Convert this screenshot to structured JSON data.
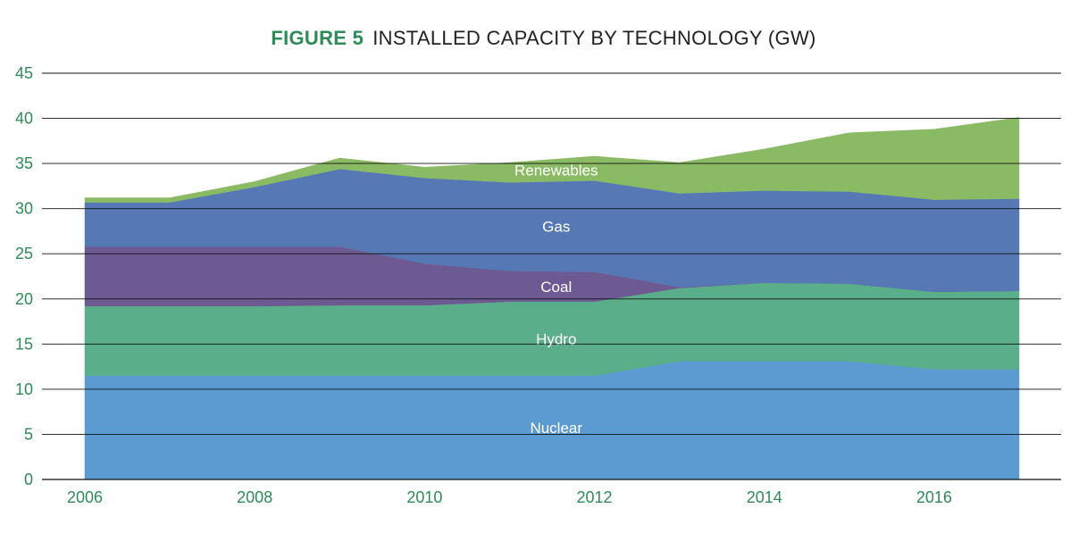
{
  "title": {
    "figure": "FIGURE 5",
    "text": "INSTALLED CAPACITY BY TECHNOLOGY (GW)"
  },
  "chart_data": {
    "type": "area",
    "stacked": true,
    "title": "FIGURE 5 INSTALLED CAPACITY BY TECHNOLOGY (GW)",
    "xlabel": "",
    "ylabel": "",
    "x": [
      2006,
      2007,
      2008,
      2009,
      2010,
      2011,
      2012,
      2013,
      2014,
      2015,
      2016,
      2017
    ],
    "x_tick_labels": [
      "2006",
      "2008",
      "2010",
      "2012",
      "2014",
      "2016"
    ],
    "y_tick_labels": [
      "0",
      "5",
      "10",
      "15",
      "20",
      "25",
      "30",
      "35",
      "40",
      "45"
    ],
    "ylim": [
      0,
      45
    ],
    "grid": true,
    "series": [
      {
        "name": "Nuclear",
        "color": "#5b9bd1",
        "values": [
          11.5,
          11.5,
          11.5,
          11.5,
          11.5,
          11.5,
          11.5,
          13.1,
          13.1,
          13.1,
          12.2,
          12.2
        ]
      },
      {
        "name": "Hydro",
        "color": "#5aaf8a",
        "values": [
          7.7,
          7.7,
          7.7,
          7.8,
          7.8,
          8.2,
          8.2,
          8.1,
          8.7,
          8.6,
          8.6,
          8.7
        ]
      },
      {
        "name": "Coal",
        "color": "#6e5a92",
        "values": [
          6.6,
          6.6,
          6.6,
          6.5,
          4.6,
          3.4,
          3.3,
          0.1,
          0.0,
          0.0,
          0.0,
          0.0
        ]
      },
      {
        "name": "Gas",
        "color": "#5679b6",
        "values": [
          4.9,
          4.9,
          6.6,
          8.6,
          9.5,
          9.8,
          10.1,
          10.4,
          10.2,
          10.2,
          10.2,
          10.2
        ]
      },
      {
        "name": "Renewables",
        "color": "#8abb64",
        "values": [
          0.5,
          0.5,
          0.6,
          1.2,
          1.2,
          2.2,
          2.7,
          3.4,
          4.6,
          6.5,
          7.8,
          9.0
        ]
      }
    ]
  }
}
